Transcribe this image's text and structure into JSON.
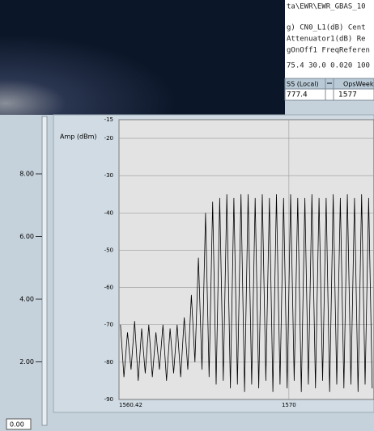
{
  "header_text": {
    "lines": [
      "ta\\EWR\\EWR_GBAS_10",
      "g) CN0_L1(dB) Cent",
      "Attenuator1(dB) Re",
      "gOnOff1 FreqReferen",
      "75.4 30.0 0.020 100"
    ]
  },
  "table": {
    "headers": [
      "SS (Local)",
      "OpsWeek"
    ],
    "rows": [
      [
        "777.4",
        "1577"
      ]
    ]
  },
  "slider": {
    "ticks": [
      {
        "value": 8,
        "label": "8.00"
      },
      {
        "value": 6,
        "label": "6.00"
      },
      {
        "value": 4,
        "label": "4.00"
      },
      {
        "value": 2,
        "label": "2.00"
      }
    ],
    "value": "0.00"
  },
  "chart_data": {
    "type": "line",
    "ylabel": "Amp (dBm)",
    "x": [
      1560.5,
      1560.7,
      1560.9,
      1561.1,
      1561.3,
      1561.5,
      1561.7,
      1561.9,
      1562.1,
      1562.3,
      1562.5,
      1562.7,
      1562.9,
      1563.1,
      1563.3,
      1563.5,
      1563.7,
      1563.9,
      1564.1,
      1564.3,
      1564.5,
      1564.7,
      1564.9,
      1565.1,
      1565.3,
      1565.5,
      1565.7,
      1565.9,
      1566.1,
      1566.3,
      1566.5,
      1566.7,
      1566.9,
      1567.1,
      1567.3,
      1567.5,
      1567.7,
      1567.9,
      1568.1,
      1568.3,
      1568.5,
      1568.7,
      1568.9,
      1569.1,
      1569.3,
      1569.5,
      1569.7,
      1569.9,
      1570.1,
      1570.3,
      1570.5,
      1570.7,
      1570.9,
      1571.1,
      1571.3,
      1571.5,
      1571.7,
      1571.9,
      1572.1,
      1572.3,
      1572.5,
      1572.7,
      1572.9,
      1573.1,
      1573.3,
      1573.5,
      1573.7,
      1573.9,
      1574.1,
      1574.3,
      1574.5,
      1574.7
    ],
    "series": [
      {
        "color": "#000000",
        "values": [
          -70,
          -84,
          -72,
          -82,
          -69,
          -85,
          -71,
          -83,
          -70,
          -84,
          -72,
          -82,
          -70,
          -85,
          -71,
          -83,
          -70,
          -84,
          -68,
          -82,
          -62,
          -80,
          -52,
          -82,
          -40,
          -84,
          -37,
          -86,
          -36,
          -85,
          -35,
          -87,
          -36,
          -86,
          -35,
          -88,
          -35,
          -86,
          -36,
          -87,
          -35,
          -85,
          -36,
          -88,
          -35,
          -86,
          -36,
          -87,
          -35,
          -85,
          -36,
          -88,
          -36,
          -86,
          -35,
          -87,
          -36,
          -85,
          -36,
          -88,
          -35,
          -86,
          -36,
          -87,
          -35,
          -86,
          -36,
          -88,
          -35,
          -86,
          -36,
          -87
        ]
      }
    ],
    "xlim": [
      1560.42,
      1574.8
    ],
    "ylim": [
      -90,
      -15
    ],
    "xticks": [
      1560.42,
      1570
    ],
    "yticks": [
      -15,
      -20,
      -30,
      -40,
      -50,
      -60,
      -70,
      -80,
      -90
    ],
    "grid": true
  }
}
